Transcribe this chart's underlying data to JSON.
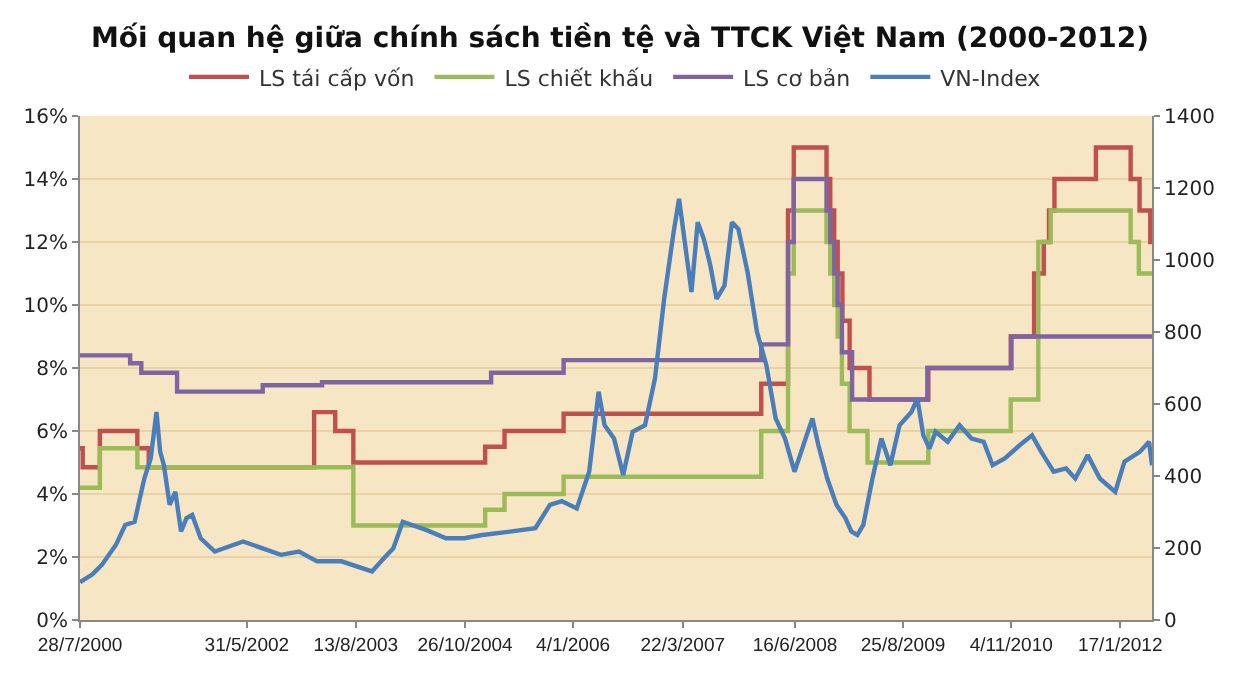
{
  "chart_data": {
    "type": "line",
    "title": "Mối quan hệ giữa chính sách tiền tệ và TTCK Việt Nam (2000-2012)",
    "legend": "top",
    "grid": "y",
    "marker": "none",
    "line_style": "solid",
    "xlim": [
      "2000-07-28",
      "2012-05-24"
    ],
    "xticks": [
      {
        "value": "2000-07-28",
        "label": "28/7/2000"
      },
      {
        "value": "2002-05-31",
        "label": "31/5/2002"
      },
      {
        "value": "2003-08-13",
        "label": "13/8/2003"
      },
      {
        "value": "2004-10-26",
        "label": "26/10/2004"
      },
      {
        "value": "2006-01-04",
        "label": "4/1/2006"
      },
      {
        "value": "2007-03-22",
        "label": "22/3/2007"
      },
      {
        "value": "2008-06-16",
        "label": "16/6/2008"
      },
      {
        "value": "2009-08-25",
        "label": "25/8/2009"
      },
      {
        "value": "2010-11-04",
        "label": "4/11/2010"
      },
      {
        "value": "2012-01-17",
        "label": "17/1/2012"
      }
    ],
    "ylim": [
      0,
      16
    ],
    "yticks": [
      {
        "value": 0,
        "label": "0%"
      },
      {
        "value": 2,
        "label": "2%"
      },
      {
        "value": 4,
        "label": "4%"
      },
      {
        "value": 6,
        "label": "6%"
      },
      {
        "value": 8,
        "label": "8%"
      },
      {
        "value": 10,
        "label": "10%"
      },
      {
        "value": 12,
        "label": "12%"
      },
      {
        "value": 14,
        "label": "14%"
      },
      {
        "value": 16,
        "label": "16%"
      }
    ],
    "y2lim": [
      0,
      1400
    ],
    "y2ticks": [
      0,
      200,
      400,
      600,
      800,
      1000,
      1200,
      1400
    ],
    "series": [
      {
        "name": "LS tái cấp vốn",
        "type": "step",
        "color": "#c0504d",
        "x": [
          "2000-07-28",
          "2000-08-08",
          "2000-10-16",
          "2001-03-16",
          "2001-05-01",
          "2003-02-26",
          "2003-05-22",
          "2003-08-03",
          "2005-01-15",
          "2005-04-03",
          "2005-11-27",
          "2008-02-01",
          "2008-05-19",
          "2008-06-11",
          "2008-10-21",
          "2008-11-05",
          "2008-11-21",
          "2008-12-05",
          "2008-12-24",
          "2009-01-22",
          "2009-04-12",
          "2009-12-05",
          "2010-11-02",
          "2011-02-04",
          "2011-03-15",
          "2011-04-05",
          "2011-04-27",
          "2011-10-11",
          "2012-02-28",
          "2012-04-04",
          "2012-05-17",
          "2012-05-24"
        ],
        "values": [
          5.45,
          4.85,
          6.0,
          5.45,
          4.85,
          6.6,
          6.0,
          5.0,
          5.5,
          6.0,
          6.55,
          7.5,
          13,
          15,
          14,
          13,
          12,
          11,
          9.5,
          8,
          7,
          8,
          9,
          11,
          12,
          13,
          14,
          15,
          14,
          13,
          12,
          12
        ]
      },
      {
        "name": "LS chiết khấu",
        "type": "step",
        "color": "#9bbb59",
        "x": [
          "2000-07-28",
          "2000-10-16",
          "2001-03-16",
          "2003-08-03",
          "2005-01-15",
          "2005-04-03",
          "2005-11-27",
          "2008-02-01",
          "2008-05-19",
          "2008-06-11",
          "2008-10-21",
          "2008-11-05",
          "2008-11-21",
          "2008-12-05",
          "2008-12-22",
          "2009-01-22",
          "2009-04-04",
          "2009-12-05",
          "2010-11-02",
          "2011-02-21",
          "2011-04-12",
          "2012-02-28",
          "2012-04-01",
          "2012-05-24"
        ],
        "values": [
          4.2,
          5.45,
          4.85,
          3.0,
          3.5,
          4.0,
          4.55,
          6.0,
          11,
          13,
          12,
          11,
          10,
          9,
          7.5,
          6,
          5,
          6,
          7,
          12,
          13,
          12,
          11,
          11
        ]
      },
      {
        "name": "LS cơ bản",
        "type": "step",
        "color": "#8064a2",
        "x": [
          "2000-07-28",
          "2001-02-15",
          "2001-04-01",
          "2001-08-23",
          "2002-08-03",
          "2003-03-30",
          "2005-02-08",
          "2005-11-27",
          "2008-02-01",
          "2008-05-19",
          "2008-06-11",
          "2008-10-21",
          "2008-11-05",
          "2008-11-21",
          "2008-12-05",
          "2008-12-22",
          "2009-02-01",
          "2009-12-01",
          "2010-11-05",
          "2012-05-24"
        ],
        "values": [
          8.4,
          8.15,
          7.85,
          7.25,
          7.45,
          7.55,
          7.85,
          8.25,
          8.75,
          12,
          14,
          13,
          12,
          11,
          10,
          8.5,
          7,
          8,
          9,
          9
        ]
      },
      {
        "name": "VN-Index",
        "axis": "y2",
        "color": "#4a7ebb",
        "x": [
          "2000-07-28",
          "2000-09-15",
          "2000-10-24",
          "2000-12-20",
          "2001-01-26",
          "2001-03-05",
          "2001-04-13",
          "2001-05-09",
          "2001-06-01",
          "2001-06-16",
          "2001-07-01",
          "2001-07-24",
          "2001-08-16",
          "2001-09-08",
          "2001-09-30",
          "2001-10-23",
          "2001-11-26",
          "2002-01-22",
          "2002-05-16",
          "2002-08-03",
          "2002-10-15",
          "2002-12-27",
          "2003-03-10",
          "2003-06-16",
          "2003-10-17",
          "2003-12-05",
          "2004-01-11",
          "2004-02-18",
          "2004-03-26",
          "2004-05-27",
          "2004-08-10",
          "2004-10-23",
          "2005-01-03",
          "2005-05-02",
          "2005-08-05",
          "2005-10-03",
          "2005-11-20",
          "2006-01-19",
          "2006-03-10",
          "2006-04-17",
          "2006-05-11",
          "2006-06-18",
          "2006-07-25",
          "2006-09-01",
          "2006-10-21",
          "2006-11-30",
          "2007-01-06",
          "2007-02-13",
          "2007-03-07",
          "2007-04-01",
          "2007-04-26",
          "2007-05-21",
          "2007-06-15",
          "2007-07-11",
          "2007-08-05",
          "2007-09-06",
          "2007-10-06",
          "2007-11-01",
          "2007-12-08",
          "2008-01-15",
          "2008-02-22",
          "2008-03-30",
          "2008-05-07",
          "2008-06-14",
          "2008-07-20",
          "2008-08-25",
          "2008-09-18",
          "2008-10-24",
          "2008-11-30",
          "2009-01-05",
          "2009-01-29",
          "2009-02-22",
          "2009-03-18",
          "2009-04-24",
          "2009-05-30",
          "2009-07-05",
          "2009-08-11",
          "2009-09-28",
          "2009-10-22",
          "2009-11-15",
          "2009-12-10",
          "2010-01-03",
          "2010-02-21",
          "2010-04-10",
          "2010-05-28",
          "2010-07-16",
          "2010-08-21",
          "2010-10-09",
          "2010-12-09",
          "2011-01-27",
          "2011-03-05",
          "2011-04-24",
          "2011-06-13",
          "2011-07-20",
          "2011-09-08",
          "2011-10-27",
          "2011-12-28",
          "2012-02-03",
          "2012-04-05",
          "2012-05-12",
          "2012-05-24"
        ],
        "values": [
          105,
          126,
          153,
          209,
          264,
          273,
          393,
          449,
          578,
          467,
          430,
          320,
          356,
          246,
          283,
          292,
          227,
          190,
          218,
          199,
          181,
          190,
          163,
          163,
          135,
          172,
          199,
          273,
          264,
          249,
          227,
          227,
          236,
          246,
          255,
          320,
          330,
          310,
          412,
          634,
          541,
          504,
          403,
          523,
          541,
          671,
          892,
          1077,
          1170,
          1040,
          911,
          1105,
          1058,
          985,
          892,
          929,
          1105,
          1086,
          966,
          800,
          707,
          560,
          504,
          412,
          486,
          560,
          486,
          393,
          320,
          283,
          246,
          236,
          264,
          393,
          504,
          430,
          541,
          578,
          615,
          513,
          476,
          523,
          495,
          541,
          504,
          495,
          430,
          449,
          486,
          513,
          467,
          412,
          421,
          393,
          458,
          393,
          356,
          440,
          467,
          495,
          430
        ]
      }
    ]
  }
}
